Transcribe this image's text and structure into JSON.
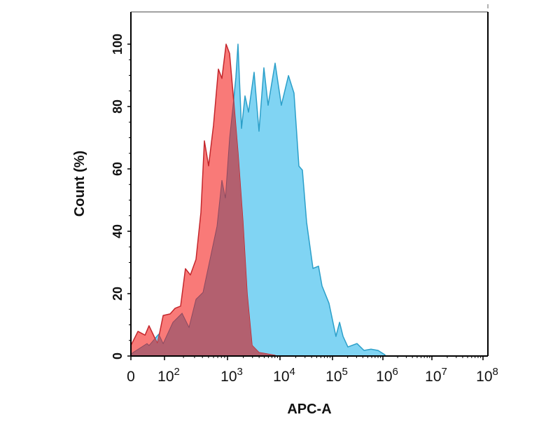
{
  "chart_data": {
    "type": "area",
    "title": "",
    "xlabel": "APC-A",
    "ylabel": "Count (%)",
    "x_scale": "biexponential (linear 0-100, log above)",
    "xlim": [
      0,
      100000000
    ],
    "ylim": [
      0,
      100
    ],
    "grid": false,
    "legend": "none",
    "y_ticks": [
      "0",
      "20",
      "40",
      "60",
      "80",
      "100"
    ],
    "x_ticks": [
      {
        "value": 0,
        "base": "0",
        "exp": ""
      },
      {
        "value": 100,
        "base": "10",
        "exp": "2"
      },
      {
        "value": 1000,
        "base": "10",
        "exp": "3"
      },
      {
        "value": 10000,
        "base": "10",
        "exp": "4"
      },
      {
        "value": 100000,
        "base": "10",
        "exp": "5"
      },
      {
        "value": 1000000,
        "base": "10",
        "exp": "6"
      },
      {
        "value": 10000000,
        "base": "10",
        "exp": "7"
      },
      {
        "value": 100000000,
        "base": "10",
        "exp": "8"
      }
    ],
    "colors": {
      "red_fill": "#f97a78",
      "red_line": "#c4262c",
      "blue_fill": "#80d4f3",
      "blue_line": "#2b9fc9",
      "overlap_fill": "#b3606f"
    },
    "series": [
      {
        "color": "red",
        "x": [
          0,
          21,
          42,
          54,
          69,
          79,
          96,
          123,
          147,
          180,
          215,
          258,
          316,
          378,
          430,
          501,
          600,
          717,
          815,
          950,
          1096,
          1279,
          1585,
          1965,
          2363,
          2929,
          3981,
          8072
        ],
        "y": [
          3.4,
          7.9,
          6.7,
          9.7,
          6.3,
          4,
          13,
          13.5,
          15.3,
          16,
          28,
          26,
          31,
          46,
          69,
          61,
          74,
          92,
          89,
          100,
          97,
          84,
          65,
          43,
          20,
          3.4,
          1.1,
          0.2
        ]
      },
      {
        "color": "blue",
        "x": [
          0,
          6,
          48,
          54,
          83,
          96,
          136,
          190,
          245,
          316,
          408,
          527,
          681,
          815,
          926,
          1096,
          1279,
          1445,
          1585,
          1848,
          2154,
          2512,
          3212,
          3981,
          4935,
          5935,
          8072,
          10600,
          14500,
          18500,
          22900,
          26700,
          32100,
          42400,
          54100,
          63100,
          85700,
          117000,
          138000,
          162000,
          202000,
          306000,
          422000,
          580000,
          800000,
          1100000
        ],
        "y": [
          0.5,
          1.1,
          4,
          3.4,
          7,
          4,
          10.8,
          13.7,
          9.2,
          18.2,
          20.4,
          31,
          41.6,
          56.4,
          50.6,
          69.9,
          80.4,
          89.4,
          100,
          73,
          83.4,
          78.2,
          91,
          72.1,
          92.4,
          80.4,
          93.9,
          80.4,
          89.9,
          84.3,
          60.9,
          59.6,
          42.9,
          28.1,
          28.8,
          22.5,
          16.9,
          6.3,
          10.8,
          6.3,
          2.9,
          4,
          1.8,
          2.2,
          1.8,
          0.4
        ]
      }
    ]
  }
}
